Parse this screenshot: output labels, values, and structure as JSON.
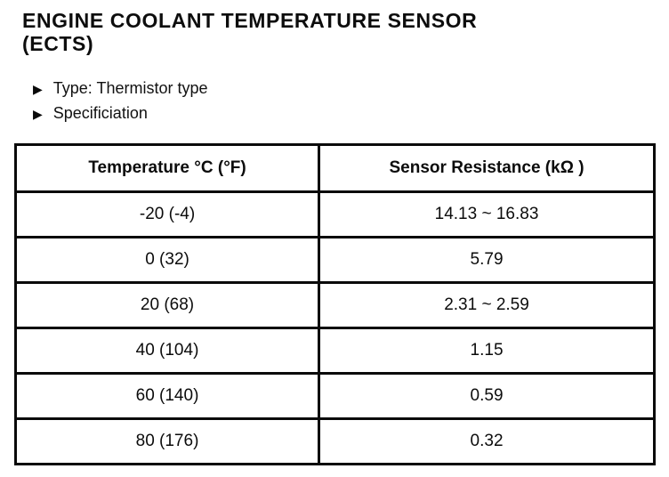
{
  "page": {
    "title_line1": "ENGINE COOLANT TEMPERATURE SENSOR",
    "title_line2": "(ECTS)",
    "bullets": [
      {
        "label": "Type: Thermistor type"
      },
      {
        "label": "Specificiation"
      }
    ],
    "bullet_icon": "▶",
    "table": {
      "headers": {
        "temperature": "Temperature °C (°F)",
        "resistance": "Sensor Resistance (kΩ )"
      },
      "rows": [
        {
          "temp": "-20 (-4)",
          "resistance": "14.13 ~ 16.83"
        },
        {
          "temp": "0 (32)",
          "resistance": "5.79"
        },
        {
          "temp": "20 (68)",
          "resistance": "2.31 ~ 2.59"
        },
        {
          "temp": "40 (104)",
          "resistance": "1.15"
        },
        {
          "temp": "60 (140)",
          "resistance": "0.59"
        },
        {
          "temp": "80 (176)",
          "resistance": "0.32"
        }
      ]
    }
  }
}
